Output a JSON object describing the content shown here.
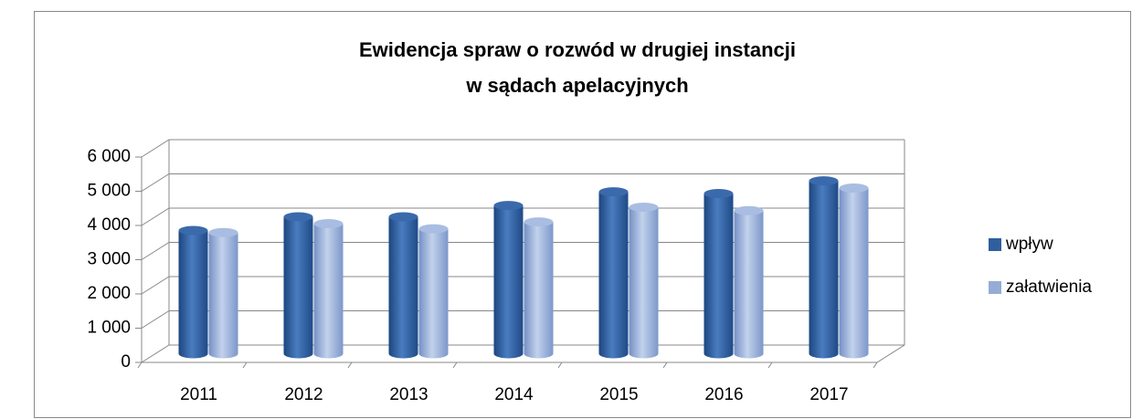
{
  "chart_data": {
    "type": "bar3d",
    "title": [
      "Ewidencja spraw o rozwód w drugiej instancji",
      "w sądach apelacyjnych"
    ],
    "categories": [
      "2011",
      "2012",
      "2013",
      "2014",
      "2015",
      "2016",
      "2017"
    ],
    "series": [
      {
        "name": "wpływ",
        "color": "#2f5f9e",
        "values": [
          3600,
          4000,
          4000,
          4330,
          4730,
          4680,
          5050
        ]
      },
      {
        "name": "załatwienia",
        "color": "#95acd6",
        "values": [
          3540,
          3800,
          3650,
          3850,
          4280,
          4180,
          4840
        ]
      }
    ],
    "ylim": [
      0,
      6000
    ],
    "yticks": [
      {
        "value": 0,
        "label": "0"
      },
      {
        "value": 1000,
        "label": "1 000"
      },
      {
        "value": 2000,
        "label": "2 000"
      },
      {
        "value": 3000,
        "label": "3 000"
      },
      {
        "value": 4000,
        "label": "4 000"
      },
      {
        "value": 5000,
        "label": "5 000"
      },
      {
        "value": 6000,
        "label": "6 000"
      }
    ],
    "grid": true,
    "legend": "right"
  }
}
